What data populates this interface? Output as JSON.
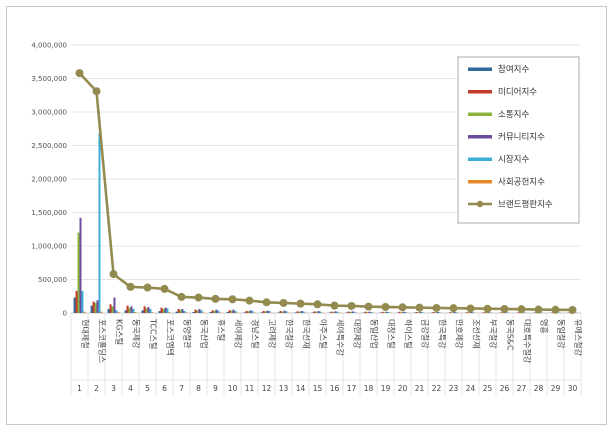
{
  "chart_data": {
    "type": "bar",
    "ylim": [
      0,
      4000000
    ],
    "y_ticks": [
      "0",
      "500,000",
      "1,000,000",
      "1,500,000",
      "2,000,000",
      "2,500,000",
      "3,000,000",
      "3,500,000",
      "4,000,000"
    ],
    "grid": true,
    "legend_position": "top-right",
    "categories": [
      "현대제철",
      "포스코홀딩스",
      "KG스틸",
      "동국제강",
      "TCC스틸",
      "포스코엠텍",
      "동양철관",
      "동국산업",
      "휴스틸",
      "세아제강",
      "경남스틸",
      "고려제강",
      "한국철강",
      "한국선재",
      "아주스틸",
      "세아특수강",
      "대한제강",
      "동일산업",
      "대창스틸",
      "하이스틸",
      "금강철강",
      "한국특강",
      "만호제강",
      "조선선재",
      "부국철강",
      "동국S&C",
      "대호특수철강",
      "영흥",
      "동일철강",
      "유에스철강"
    ],
    "indices": [
      "1",
      "2",
      "3",
      "4",
      "5",
      "6",
      "7",
      "8",
      "9",
      "10",
      "11",
      "12",
      "13",
      "14",
      "15",
      "16",
      "17",
      "18",
      "19",
      "20",
      "21",
      "22",
      "23",
      "24",
      "25",
      "26",
      "27",
      "28",
      "29",
      "30"
    ],
    "series": [
      {
        "name": "참여지수",
        "color": "#2f6a9c",
        "values": [
          230000,
          110000,
          60000,
          40000,
          40000,
          30000,
          20000,
          15000,
          15000,
          15000,
          10000,
          10000,
          8000,
          8000,
          7000,
          7000,
          6000,
          6000,
          5000,
          5000,
          5000,
          4000,
          4000,
          4000,
          4000,
          3000,
          3000,
          3000,
          3000,
          3000
        ]
      },
      {
        "name": "미디어지수",
        "color": "#c0392b",
        "values": [
          330000,
          170000,
          130000,
          110000,
          100000,
          80000,
          60000,
          50000,
          40000,
          40000,
          30000,
          30000,
          30000,
          25000,
          25000,
          20000,
          20000,
          20000,
          18000,
          18000,
          15000,
          15000,
          12000,
          12000,
          12000,
          10000,
          10000,
          10000,
          8000,
          8000
        ]
      },
      {
        "name": "소통지수",
        "color": "#8cb33f",
        "values": [
          1200000,
          150000,
          100000,
          80000,
          70000,
          60000,
          45000,
          40000,
          35000,
          35000,
          25000,
          25000,
          20000,
          20000,
          18000,
          18000,
          15000,
          15000,
          12000,
          12000,
          12000,
          10000,
          10000,
          10000,
          8000,
          8000,
          8000,
          7000,
          7000,
          6000
        ]
      },
      {
        "name": "커뮤니티지수",
        "color": "#6d4e9e",
        "values": [
          1420000,
          190000,
          230000,
          100000,
          90000,
          80000,
          60000,
          60000,
          50000,
          50000,
          40000,
          35000,
          35000,
          30000,
          30000,
          25000,
          25000,
          20000,
          20000,
          20000,
          18000,
          15000,
          15000,
          15000,
          12000,
          12000,
          12000,
          10000,
          10000,
          10000
        ]
      },
      {
        "name": "시장지수",
        "color": "#3aaed8",
        "values": [
          330000,
          2680000,
          40000,
          60000,
          60000,
          70000,
          30000,
          40000,
          35000,
          30000,
          30000,
          30000,
          25000,
          25000,
          20000,
          20000,
          20000,
          15000,
          15000,
          15000,
          12000,
          12000,
          12000,
          10000,
          10000,
          10000,
          8000,
          8000,
          8000,
          7000
        ]
      },
      {
        "name": "사회공헌지수",
        "color": "#e8862a",
        "values": [
          20000,
          20000,
          15000,
          15000,
          12000,
          12000,
          10000,
          10000,
          8000,
          8000,
          8000,
          7000,
          7000,
          6000,
          6000,
          6000,
          5000,
          5000,
          5000,
          5000,
          4000,
          4000,
          4000,
          4000,
          4000,
          3000,
          3000,
          3000,
          3000,
          3000
        ]
      }
    ],
    "line_series": {
      "name": "브랜드평판지수",
      "color": "#938a4f",
      "values": [
        3580000,
        3310000,
        580000,
        390000,
        380000,
        360000,
        240000,
        230000,
        210000,
        205000,
        185000,
        160000,
        150000,
        140000,
        130000,
        110000,
        105000,
        95000,
        90000,
        85000,
        80000,
        75000,
        72000,
        68000,
        64000,
        60000,
        57000,
        52000,
        48000,
        45000
      ]
    }
  }
}
